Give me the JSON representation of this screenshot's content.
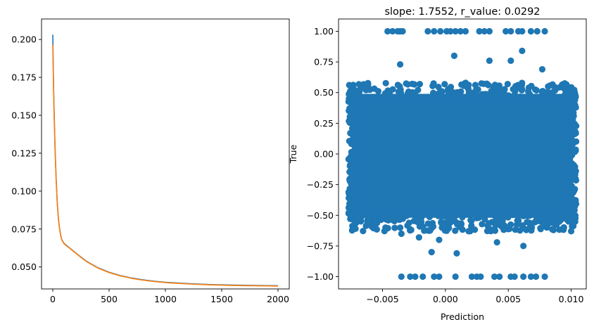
{
  "chart_data": [
    {
      "type": "line",
      "title": "",
      "xlabel": "",
      "ylabel": "",
      "xlim": [
        -100,
        2100
      ],
      "ylim": [
        0.0355,
        0.2135
      ],
      "x_ticks": [
        "0",
        "500",
        "1000",
        "1500",
        "2000"
      ],
      "y_ticks": [
        "0.050",
        "0.075",
        "0.100",
        "0.125",
        "0.150",
        "0.175",
        "0.200"
      ],
      "colors": [
        "#1f77b4",
        "#ff7f0e"
      ],
      "series": [
        {
          "x": [
            0,
            5,
            10,
            20,
            30,
            40,
            50,
            60,
            70,
            80,
            100,
            125,
            150,
            200,
            250,
            300,
            400,
            500,
            600,
            700,
            800,
            900,
            1000,
            1200,
            1400,
            1600,
            1800,
            2000
          ],
          "values": [
            0.2032,
            0.178,
            0.158,
            0.129,
            0.108,
            0.092,
            0.082,
            0.0755,
            0.071,
            0.068,
            0.0655,
            0.064,
            0.0625,
            0.0595,
            0.0565,
            0.0537,
            0.0495,
            0.0465,
            0.0443,
            0.0427,
            0.0415,
            0.0406,
            0.0399,
            0.039,
            0.0384,
            0.038,
            0.0378,
            0.0376
          ]
        },
        {
          "x": [
            0,
            5,
            10,
            20,
            30,
            40,
            50,
            60,
            70,
            80,
            100,
            125,
            150,
            200,
            250,
            300,
            400,
            500,
            600,
            700,
            800,
            900,
            1000,
            1200,
            1400,
            1600,
            1800,
            2000
          ],
          "values": [
            0.1965,
            0.175,
            0.155,
            0.127,
            0.107,
            0.0915,
            0.0815,
            0.0752,
            0.0708,
            0.0678,
            0.0653,
            0.0638,
            0.0623,
            0.0593,
            0.0563,
            0.0535,
            0.0493,
            0.0463,
            0.0441,
            0.0425,
            0.0413,
            0.0404,
            0.0397,
            0.0388,
            0.0382,
            0.0378,
            0.0376,
            0.0374
          ]
        }
      ]
    },
    {
      "type": "scatter",
      "title": "slope: 1.7552, r_value: 0.0292",
      "xlabel": "Prediction",
      "ylabel": "True",
      "xlim": [
        -0.0085,
        0.0112
      ],
      "ylim": [
        -1.1,
        1.1
      ],
      "x_ticks": [
        "−0.005",
        "0.000",
        "0.005",
        "0.010"
      ],
      "y_ticks": [
        "−1.00",
        "−0.75",
        "−0.50",
        "−0.25",
        "0.00",
        "0.25",
        "0.50",
        "0.75",
        "1.00"
      ],
      "color": "#1f77b4",
      "bulk_region": {
        "x_range": [
          -0.0077,
          0.0104
        ],
        "y_range": [
          -0.55,
          0.52
        ]
      },
      "top_points_x": [
        -0.0046,
        -0.0042,
        -0.0038,
        -0.0036,
        -0.0034,
        -0.0014,
        -0.0009,
        -0.0004,
        0.0001,
        0.0004,
        0.0008,
        0.0012,
        0.0016,
        0.0027,
        0.0031,
        0.0035,
        0.0048,
        0.0052,
        0.0058,
        0.0061,
        0.0068,
        0.0073,
        0.0079
      ],
      "bottom_points_x": [
        -0.0035,
        -0.0028,
        -0.0024,
        -0.0018,
        -0.0009,
        -0.0005,
        0.0008,
        0.0021,
        0.0025,
        0.0028,
        0.0039,
        0.0043,
        0.0052,
        0.0055,
        0.0062,
        0.0068,
        0.0072,
        0.0079
      ],
      "outlier_points": [
        [
          0.0007,
          0.8
        ],
        [
          0.0061,
          0.84
        ],
        [
          0.0052,
          0.76
        ],
        [
          0.0077,
          0.69
        ],
        [
          -0.0036,
          0.73
        ],
        [
          0.0035,
          0.76
        ],
        [
          -0.0011,
          -0.8
        ],
        [
          0.0009,
          -0.81
        ],
        [
          -0.0035,
          -0.65
        ],
        [
          0.0041,
          -0.72
        ],
        [
          -0.0005,
          -0.7
        ],
        [
          0.0062,
          -0.75
        ],
        [
          -0.0021,
          -0.68
        ]
      ]
    }
  ]
}
